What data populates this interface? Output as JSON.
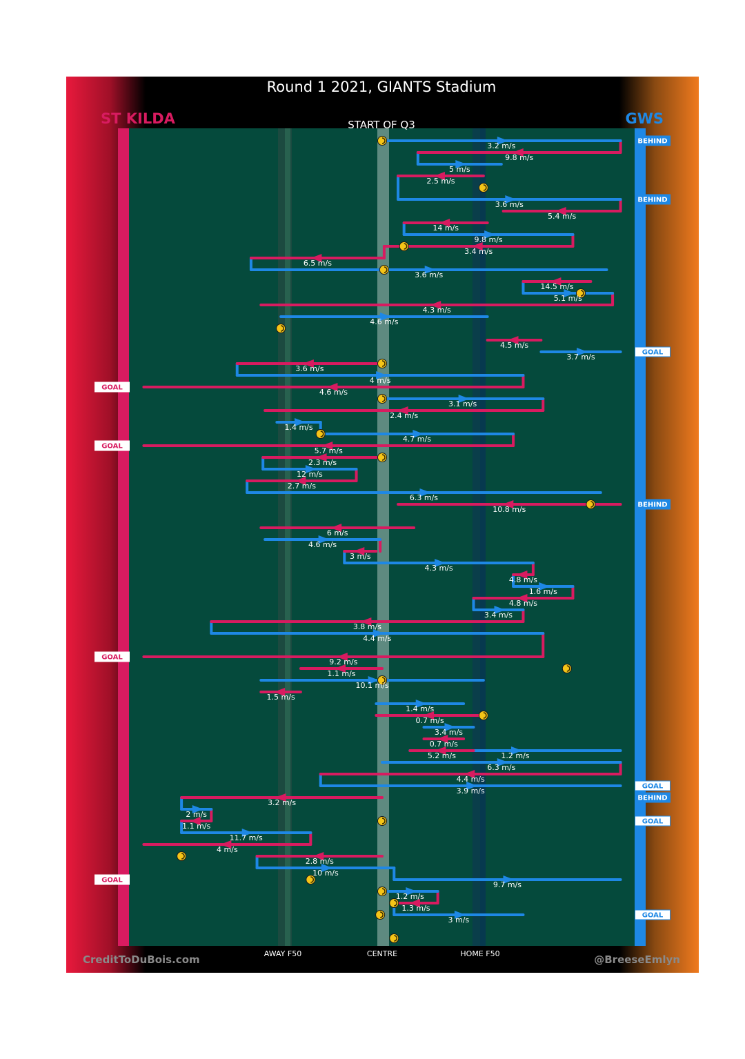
{
  "title": "Round 1 2021, GIANTS Stadium",
  "subtitle": "START OF Q3",
  "teams": {
    "left": {
      "name": "ST KILDA",
      "color": "#d81b60"
    },
    "right": {
      "name": "GWS",
      "color": "#1e88e5"
    }
  },
  "labels": {
    "away_f50": "AWAY F50",
    "centre": "CENTRE",
    "home_f50": "HOME F50",
    "credit_left": "CreditToDuBois.com",
    "credit_right": "@BreeseEmlyn"
  },
  "colors": {
    "st_kilda": "#d81b60",
    "gws": "#1e88e5",
    "field": "#054a3c",
    "ball_up": "#f5c518",
    "orange": "#f07a1e"
  },
  "chart_data": {
    "type": "line",
    "title": "Round 1 2021, GIANTS Stadium",
    "subtitle": "START OF Q3",
    "x_axis": {
      "ticks": [
        "AWAY F50",
        "CENTRE",
        "HOME F50"
      ]
    },
    "y_axis": {
      "direction": "time runs top to bottom"
    },
    "stoppages": [
      {
        "row": 1,
        "x": 0
      },
      {
        "row": 5,
        "x": 0.51
      },
      {
        "row": 10,
        "x": 0.11
      },
      {
        "row": 12,
        "x": 0.01
      },
      {
        "row": 14,
        "x": 1.0
      },
      {
        "row": 17,
        "x": -0.51
      },
      {
        "row": 20,
        "x": 0
      },
      {
        "row": 23,
        "x": 0
      },
      {
        "row": 26,
        "x": -0.31
      },
      {
        "row": 28,
        "x": 0
      },
      {
        "row": 32,
        "x": 1.05
      },
      {
        "row": 46,
        "x": 0.93
      },
      {
        "row": 47,
        "x": 0
      },
      {
        "row": 50,
        "x": 0.51
      },
      {
        "row": 59,
        "x": 0
      },
      {
        "row": 62,
        "x": -1.01
      },
      {
        "row": 64,
        "x": -0.36
      },
      {
        "row": 65,
        "x": 0
      },
      {
        "row": 66,
        "x": 0.06
      },
      {
        "row": 67,
        "x": -0.01
      },
      {
        "row": 69,
        "x": 0.06
      }
    ],
    "outcomes": [
      {
        "row": 1,
        "team": "GWS",
        "result": "BEHIND"
      },
      {
        "row": 6,
        "team": "GWS",
        "result": "BEHIND"
      },
      {
        "row": 19,
        "team": "GWS",
        "result": "GOAL"
      },
      {
        "row": 22,
        "team": "ST KILDA",
        "result": "GOAL"
      },
      {
        "row": 27,
        "team": "ST KILDA",
        "result": "GOAL"
      },
      {
        "row": 32,
        "team": "GWS",
        "result": "BEHIND"
      },
      {
        "row": 45,
        "team": "ST KILDA",
        "result": "GOAL"
      },
      {
        "row": 56,
        "team": "GWS",
        "result": "GOAL"
      },
      {
        "row": 57,
        "team": "GWS",
        "result": "BEHIND"
      },
      {
        "row": 59,
        "team": "GWS",
        "result": "GOAL"
      },
      {
        "row": 64,
        "team": "ST KILDA",
        "result": "GOAL"
      },
      {
        "row": 67,
        "team": "GWS",
        "result": "GOAL"
      }
    ],
    "series": [
      {
        "name": "GWS",
        "color": "#1e88e5",
        "segments": [
          {
            "row": 1,
            "x0": 0,
            "x1": 1.2,
            "speed": "3.2 m/s"
          },
          {
            "row": 3,
            "x0": 0.18,
            "x1": 0.6,
            "speed": "5 m/s"
          },
          {
            "row": 6,
            "x0": 0.08,
            "x1": 1.2,
            "speed": "3.6 m/s"
          },
          {
            "row": 9,
            "x0": 0.11,
            "x1": 0.96,
            "speed": "9.8 m/s"
          },
          {
            "row": 12,
            "x0": -0.66,
            "x1": 1.13,
            "speed": "3.6 m/s"
          },
          {
            "row": 14,
            "x0": 0.71,
            "x1": 1.16,
            "speed": "5.1 m/s"
          },
          {
            "row": 16,
            "x0": -0.51,
            "x1": 0.53,
            "speed": "4.6 m/s"
          },
          {
            "row": 19,
            "x0": 0.8,
            "x1": 1.2,
            "speed": "3.7 m/s"
          },
          {
            "row": 21,
            "x0": -0.73,
            "x1": 0.71,
            "speed": "4 m/s"
          },
          {
            "row": 23,
            "x0": 0,
            "x1": 0.81,
            "speed": "3.1 m/s"
          },
          {
            "row": 25,
            "x0": -0.53,
            "x1": -0.31,
            "speed": "1.4 m/s"
          },
          {
            "row": 26,
            "x0": -0.31,
            "x1": 0.66,
            "speed": "4.7 m/s"
          },
          {
            "row": 29,
            "x0": -0.6,
            "x1": -0.13,
            "speed": "12 m/s"
          },
          {
            "row": 31,
            "x0": -0.68,
            "x1": 1.1,
            "speed": "6.3 m/s"
          },
          {
            "row": 35,
            "x0": -0.59,
            "x1": -0.01,
            "speed": "4.6 m/s"
          },
          {
            "row": 37,
            "x0": -0.19,
            "x1": 0.76,
            "speed": "4.3 m/s"
          },
          {
            "row": 39,
            "x0": 0.66,
            "x1": 0.96,
            "speed": "1.6 m/s"
          },
          {
            "row": 41,
            "x0": 0.46,
            "x1": 0.71,
            "speed": "3.4 m/s"
          },
          {
            "row": 43,
            "x0": -0.86,
            "x1": 0.81,
            "speed": "4.4 m/s"
          },
          {
            "row": 47,
            "x0": -0.61,
            "x1": 0.51,
            "speed": "10.1 m/s"
          },
          {
            "row": 49,
            "x0": -0.03,
            "x1": 0.41,
            "speed": "1.4 m/s"
          },
          {
            "row": 51,
            "x0": 0.21,
            "x1": 0.46,
            "speed": "3.4 m/s"
          },
          {
            "row": 53,
            "x0": 0.14,
            "x1": 1.2,
            "speed": "1.2 m/s"
          },
          {
            "row": 54,
            "x0": 0,
            "x1": 1.2,
            "speed": "6.3 m/s"
          },
          {
            "row": 56,
            "x0": -0.31,
            "x1": 1.2,
            "speed": "3.9 m/s"
          },
          {
            "row": 58,
            "x0": -1.01,
            "x1": -0.86,
            "speed": "2 m/s"
          },
          {
            "row": 60,
            "x0": -1.01,
            "x1": -0.36,
            "speed": "11.7 m/s"
          },
          {
            "row": 63,
            "x0": -0.63,
            "x1": 0.06,
            "speed": "10 m/s"
          },
          {
            "row": 64,
            "x0": 0.06,
            "x1": 1.2,
            "speed": "9.7 m/s"
          },
          {
            "row": 65,
            "x0": 0,
            "x1": 0.28,
            "speed": "1.2 m/s"
          },
          {
            "row": 67,
            "x0": 0.06,
            "x1": 0.71,
            "speed": "3 m/s"
          }
        ]
      },
      {
        "name": "ST KILDA",
        "color": "#d81b60",
        "segments": [
          {
            "row": 2,
            "x1": 0.18,
            "x0": 1.2,
            "speed": "9.8 m/s"
          },
          {
            "row": 4,
            "x1": 0.08,
            "x0": 0.51,
            "speed": "2.5 m/s"
          },
          {
            "row": 7,
            "x1": 0.61,
            "x0": 1.2,
            "speed": "5.4 m/s"
          },
          {
            "row": 8,
            "x1": 0.11,
            "x0": 0.53,
            "speed": "14 m/s"
          },
          {
            "row": 10,
            "x1": 0.01,
            "x0": 0.96,
            "speed": "3.4 m/s"
          },
          {
            "row": 11,
            "x1": -0.66,
            "x0": 0.01,
            "speed": "6.5 m/s"
          },
          {
            "row": 13,
            "x1": 0.71,
            "x0": 1.05,
            "speed": "14.5 m/s"
          },
          {
            "row": 15,
            "x1": -0.61,
            "x0": 1.16,
            "speed": "4.3 m/s"
          },
          {
            "row": 18,
            "x1": 0.53,
            "x0": 0.8,
            "speed": "4.5 m/s"
          },
          {
            "row": 20,
            "x1": -0.73,
            "x0": 0,
            "speed": "3.6 m/s"
          },
          {
            "row": 22,
            "x1": -1.2,
            "x0": 0.71,
            "speed": "4.6 m/s"
          },
          {
            "row": 24,
            "x1": -0.59,
            "x0": 0.81,
            "speed": "2.4 m/s"
          },
          {
            "row": 27,
            "x1": -1.2,
            "x0": 0.66,
            "speed": "5.7 m/s"
          },
          {
            "row": 28,
            "x1": -0.6,
            "x0": 0,
            "speed": "2.3 m/s"
          },
          {
            "row": 30,
            "x1": -0.68,
            "x0": -0.13,
            "speed": "2.7 m/s"
          },
          {
            "row": 32,
            "x1": 0.08,
            "x0": 1.2,
            "speed": "10.8 m/s"
          },
          {
            "row": 34,
            "x1": -0.61,
            "x0": 0.16,
            "speed": "6 m/s"
          },
          {
            "row": 36,
            "x1": -0.19,
            "x0": -0.03,
            "speed": "3 m/s"
          },
          {
            "row": 38,
            "x1": 0.66,
            "x0": 0.76,
            "speed": "4.8 m/s"
          },
          {
            "row": 40,
            "x1": 0.46,
            "x0": 0.96,
            "speed": "4.8 m/s"
          },
          {
            "row": 42,
            "x1": -0.86,
            "x0": 0.71,
            "speed": "3.8 m/s"
          },
          {
            "row": 45,
            "x1": -1.2,
            "x0": 0.81,
            "speed": "9.2 m/s"
          },
          {
            "row": 46,
            "x1": -0.41,
            "x0": 0,
            "speed": "1.1 m/s"
          },
          {
            "row": 48,
            "x1": -0.61,
            "x0": -0.41,
            "speed": "1.5 m/s"
          },
          {
            "row": 50,
            "x1": -0.03,
            "x0": 0.51,
            "speed": "0.7 m/s"
          },
          {
            "row": 52,
            "x1": 0.21,
            "x0": 0.41,
            "speed": "0.7 m/s"
          },
          {
            "row": 53,
            "x1": 0.14,
            "x0": 0.46,
            "speed": "5.2 m/s"
          },
          {
            "row": 55,
            "x1": -0.31,
            "x0": 1.2,
            "speed": "4.4 m/s"
          },
          {
            "row": 57,
            "x1": -1.01,
            "x0": 0,
            "speed": "3.2 m/s"
          },
          {
            "row": 59,
            "x1": -1.01,
            "x0": -0.86,
            "speed": "1.1 m/s"
          },
          {
            "row": 61,
            "x1": -1.2,
            "x0": -0.36,
            "speed": "4 m/s"
          },
          {
            "row": 62,
            "x1": -0.63,
            "x0": 0,
            "speed": "2.8 m/s"
          },
          {
            "row": 66,
            "x1": 0.06,
            "x0": 0.28,
            "speed": "1.3 m/s"
          }
        ]
      }
    ]
  }
}
